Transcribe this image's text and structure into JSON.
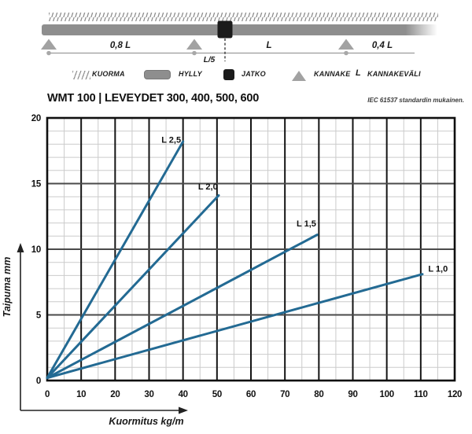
{
  "schematic": {
    "dim_labels": {
      "left_span": "0,8 L",
      "joint_offset": "L/5",
      "mid_span": "L",
      "right_span": "0,4 L"
    },
    "legend": [
      {
        "name": "load",
        "label": "KUORMA"
      },
      {
        "name": "shelf",
        "label": "HYLLY"
      },
      {
        "name": "joint",
        "label": "JATKO"
      },
      {
        "name": "bracket",
        "label": "KANNAKE"
      },
      {
        "name": "bracket-spacing",
        "label": "KANNAKEVÄLI",
        "symbol": "L"
      }
    ]
  },
  "chart_data": {
    "type": "line",
    "title": "WMT 100  |  LEVEYDET 300, 400, 500, 600",
    "note": "IEC 61537 standardin mukainen.",
    "xlabel": "Kuormitus kg/m",
    "ylabel": "Taipuma mm",
    "xlim": [
      0,
      120
    ],
    "ylim": [
      0,
      20
    ],
    "x_ticks": [
      0,
      10,
      20,
      30,
      40,
      50,
      60,
      70,
      80,
      90,
      100,
      110,
      120
    ],
    "y_ticks": [
      0,
      5,
      10,
      15,
      20
    ],
    "x_minor_step": 5,
    "y_minor_step": 1,
    "grid": true,
    "legend_position": "inline-labels",
    "line_color": "#236a93",
    "series": [
      {
        "name": "L 2,5",
        "x": [
          0,
          40
        ],
        "y": [
          0.2,
          18.2
        ],
        "label_pos": [
          39.4,
          18.1
        ],
        "label_anchor": "end"
      },
      {
        "name": "L 2,0",
        "x": [
          0,
          50.5
        ],
        "y": [
          0.2,
          14.1
        ],
        "label_pos": [
          50.2,
          14.55
        ],
        "label_anchor": "end"
      },
      {
        "name": "L 1,5",
        "x": [
          0,
          79.5
        ],
        "y": [
          0.2,
          11.1
        ],
        "label_pos": [
          79.2,
          11.75
        ],
        "label_anchor": "end"
      },
      {
        "name": "L 1,0",
        "x": [
          0,
          110.5
        ],
        "y": [
          0.2,
          8.1
        ],
        "label_pos": [
          112.2,
          8.3
        ],
        "label_anchor": "start"
      }
    ]
  },
  "colors": {
    "line": "#236a93",
    "shelf_gray": "#8e8e8e",
    "bracket_gray": "#a2a2a2",
    "joint_black": "#1b1b1b",
    "grid_minor": "#cbcbcb",
    "grid_major_h": "#4a4a4a",
    "grid_major_v": "#141414"
  }
}
